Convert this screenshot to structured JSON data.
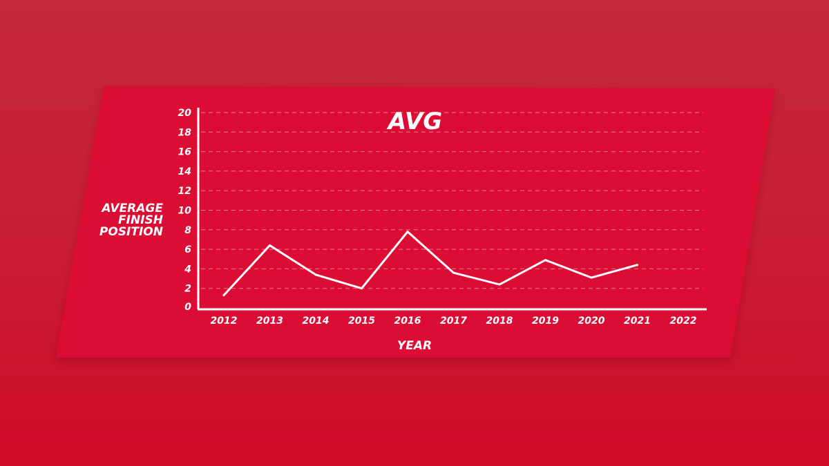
{
  "chart_data": {
    "type": "line",
    "title": "AVG",
    "ylabel": [
      "AVERAGE",
      "FINISH",
      "POSITION"
    ],
    "xlabel": "YEAR",
    "categories": [
      "2012",
      "2013",
      "2014",
      "2015",
      "2016",
      "2017",
      "2018",
      "2019",
      "2020",
      "2021",
      "2022"
    ],
    "yticks": [
      "0",
      "2",
      "4",
      "6",
      "8",
      "10",
      "12",
      "14",
      "16",
      "18",
      "20"
    ],
    "ylim": [
      0,
      20
    ],
    "grid": true,
    "series": [
      {
        "values": [
          1.3,
          6.4,
          3.4,
          2.0,
          7.8,
          3.6,
          2.4,
          4.9,
          3.1,
          4.4,
          null
        ]
      }
    ],
    "colors": {
      "background": "#c91f37",
      "panel": "#dc0c36",
      "line": "#ffffff"
    }
  }
}
